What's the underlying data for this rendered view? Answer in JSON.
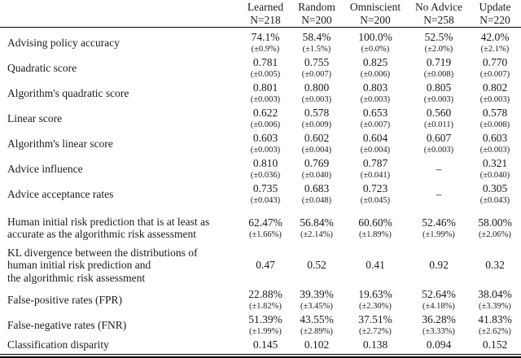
{
  "table": {
    "columns": [
      {
        "label": "Learned",
        "n": "N=218"
      },
      {
        "label": "Random",
        "n": "N=200"
      },
      {
        "label": "Omniscient",
        "n": "N=200"
      },
      {
        "label": "No Advice",
        "n": "N=258"
      },
      {
        "label": "Update",
        "n": "N=220"
      }
    ],
    "rows": [
      {
        "label": "Advising policy accuracy",
        "cells": [
          [
            "74.1%",
            "(±0.9%)"
          ],
          [
            "58.4%",
            "(±1.5%)"
          ],
          [
            "100.0%",
            "(±0.0%)"
          ],
          [
            "52.5%",
            "(±2.0%)"
          ],
          [
            "42.0%",
            "(±2.1%)"
          ]
        ]
      },
      {
        "label": "Quadratic score",
        "cells": [
          [
            "0.781",
            "(±0.005)"
          ],
          [
            "0.755",
            "(±0.007)"
          ],
          [
            "0.825",
            "(±0.006)"
          ],
          [
            "0.719",
            "(±0.008)"
          ],
          [
            "0.770",
            "(±0.007)"
          ]
        ]
      },
      {
        "label": "Algorithm's quadratic score",
        "cells": [
          [
            "0.801",
            "(±0.003)"
          ],
          [
            "0.800",
            "(±0.003)"
          ],
          [
            "0.803",
            "(±0.003)"
          ],
          [
            "0.805",
            "(±0.003)"
          ],
          [
            "0.802",
            "(±0.003)"
          ]
        ]
      },
      {
        "label": "Linear score",
        "cells": [
          [
            "0.622",
            "(±0.006)"
          ],
          [
            "0.578",
            "(±0.009)"
          ],
          [
            "0.653",
            "(±0.007)"
          ],
          [
            "0.560",
            "(±0.011)"
          ],
          [
            "0.578",
            "(±0.008)"
          ]
        ]
      },
      {
        "label": "Algorithm's linear score",
        "cells": [
          [
            "0.603",
            "(±0.003)"
          ],
          [
            "0.602",
            "(±0.004)"
          ],
          [
            "0.604",
            "(±0.004)"
          ],
          [
            "0.607",
            "(±0.003)"
          ],
          [
            "0.603",
            "(±0.003)"
          ]
        ]
      },
      {
        "label": "Advice influence",
        "cells": [
          [
            "0.810",
            "(±0.036)"
          ],
          [
            "0.769",
            "(±0.040)"
          ],
          [
            "0.787",
            "(±0.041)"
          ],
          [
            "–",
            ""
          ],
          [
            "0.321",
            "(±0.040)"
          ]
        ]
      },
      {
        "label": "Advice acceptance rates",
        "cells": [
          [
            "0.735",
            "(±0.043)"
          ],
          [
            "0.683",
            "(±0.048)"
          ],
          [
            "0.723",
            "(±0.045)"
          ],
          [
            "–",
            ""
          ],
          [
            "0.305",
            "(±0.043)"
          ]
        ]
      },
      {
        "label": "Human initial risk prediction that is at least as\naccurate as the algorithmic risk assessment",
        "cells": [
          [
            "62.47%",
            "(±1.66%)"
          ],
          [
            "56.84%",
            "(±2.14%)"
          ],
          [
            "60.60%",
            "(±1.89%)"
          ],
          [
            "52.46%",
            "(±1.99%)"
          ],
          [
            "58.00%",
            "(±2.06%)"
          ]
        ]
      },
      {
        "label": "KL divergence between the distributions of\nhuman initial risk prediction and\nthe algorithmic risk assessment",
        "cells": [
          [
            "0.47",
            ""
          ],
          [
            "0.52",
            ""
          ],
          [
            "0.41",
            ""
          ],
          [
            "0.92",
            ""
          ],
          [
            "0.32",
            ""
          ]
        ]
      },
      {
        "label": "False-positive rates (FPR)",
        "cells": [
          [
            "22.88%",
            "(±1.82%)"
          ],
          [
            "39.39%",
            "(±3.45%)"
          ],
          [
            "19.63%",
            "(±2.30%)"
          ],
          [
            "52.64%",
            "(±4.18%)"
          ],
          [
            "38.04%",
            "(±3.39%)"
          ]
        ]
      },
      {
        "label": "False-negative rates (FNR)",
        "cells": [
          [
            "51.39%",
            "(±1.99%)"
          ],
          [
            "43.55%",
            "(±2.89%)"
          ],
          [
            "37.51%",
            "(±2.72%)"
          ],
          [
            "36.28%",
            "(±3.33%)"
          ],
          [
            "41.83%",
            "(±2.62%)"
          ]
        ]
      },
      {
        "label": "Classification disparity",
        "cells": [
          [
            "0.145",
            ""
          ],
          [
            "0.102",
            ""
          ],
          [
            "0.138",
            ""
          ],
          [
            "0.094",
            ""
          ],
          [
            "0.152",
            ""
          ]
        ]
      }
    ]
  }
}
